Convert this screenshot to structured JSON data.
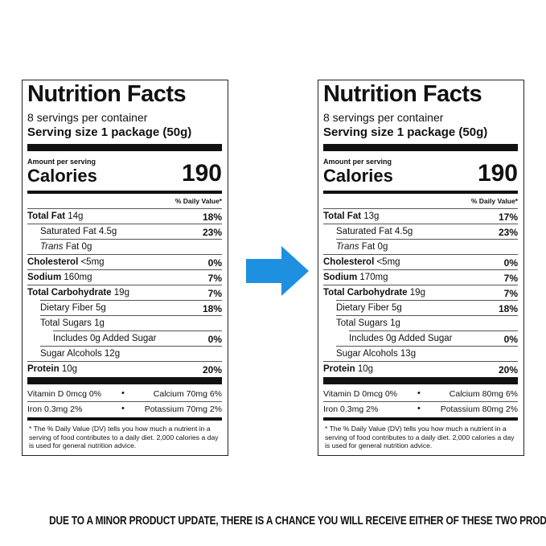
{
  "labels": [
    {
      "title": "Nutrition Facts",
      "servings_per_container": "8 servings per container",
      "serving_size": "Serving size 1 package (50g)",
      "amount_per_serving": "Amount per serving",
      "calories_label": "Calories",
      "calories_value": "190",
      "daily_value_header": "% Daily Value*",
      "total_fat": {
        "label": "Total Fat",
        "amount": "14g",
        "dv": "18%"
      },
      "saturated_fat": {
        "label": "Saturated Fat 4.5g",
        "dv": "23%"
      },
      "trans_fat": {
        "label": "Trans",
        "rest": "Fat 0g"
      },
      "cholesterol": {
        "label": "Cholesterol",
        "amount": "<5mg",
        "dv": "0%"
      },
      "sodium": {
        "label": "Sodium",
        "amount": "160mg",
        "dv": "7%"
      },
      "total_carb": {
        "label": "Total Carbohydrate",
        "amount": "19g",
        "dv": "7%"
      },
      "dietary_fiber": {
        "label": "Dietary Fiber 5g",
        "dv": "18%"
      },
      "total_sugars": {
        "label": "Total Sugars 1g"
      },
      "added_sugar": {
        "label": "Includes 0g Added Sugar",
        "dv": "0%"
      },
      "sugar_alcohols": {
        "label": "Sugar Alcohols 12g"
      },
      "protein": {
        "label": "Protein",
        "amount": "10g",
        "dv": "20%"
      },
      "vitamin_d": "Vitamin D 0mcg 0%",
      "calcium": "Calcium 70mg 6%",
      "iron": "Iron 0.3mg 2%",
      "potassium": "Potassium 70mg 2%",
      "footnote": "* The % Daily Value (DV) tells you how much a nutrient in a serving of food contributes to a daily diet. 2,000 calories a day is used for general nutrition advice."
    },
    {
      "title": "Nutrition Facts",
      "servings_per_container": "8 servings per container",
      "serving_size": "Serving size 1 package (50g)",
      "amount_per_serving": "Amount per serving",
      "calories_label": "Calories",
      "calories_value": "190",
      "daily_value_header": "% Daily Value*",
      "total_fat": {
        "label": "Total Fat",
        "amount": "13g",
        "dv": "17%"
      },
      "saturated_fat": {
        "label": "Saturated Fat 4.5g",
        "dv": "23%"
      },
      "trans_fat": {
        "label": "Trans",
        "rest": "Fat 0g"
      },
      "cholesterol": {
        "label": "Cholesterol",
        "amount": "<5mg",
        "dv": "0%"
      },
      "sodium": {
        "label": "Sodium",
        "amount": "170mg",
        "dv": "7%"
      },
      "total_carb": {
        "label": "Total Carbohydrate",
        "amount": "19g",
        "dv": "7%"
      },
      "dietary_fiber": {
        "label": "Dietary Fiber 5g",
        "dv": "18%"
      },
      "total_sugars": {
        "label": "Total Sugars 1g"
      },
      "added_sugar": {
        "label": "Includes 0g Added Sugar",
        "dv": "0%"
      },
      "sugar_alcohols": {
        "label": "Sugar Alcohols 13g"
      },
      "protein": {
        "label": "Protein",
        "amount": "10g",
        "dv": "20%"
      },
      "vitamin_d": "Vitamin D 0mcg 0%",
      "calcium": "Calcium 80mg 6%",
      "iron": "Iron 0.3mg 2%",
      "potassium": "Potassium 80mg 2%",
      "footnote": "* The % Daily Value (DV) tells you how much a nutrient in a serving of food contributes to a daily diet. 2,000 calories a day is used for general nutrition advice."
    }
  ],
  "arrow_color": "#1e90e0",
  "footer_notice": "DUE TO A MINOR PRODUCT UPDATE, THERE IS A CHANCE YOU WILL RECEIVE EITHER OF THESE TWO PRODUCTS"
}
